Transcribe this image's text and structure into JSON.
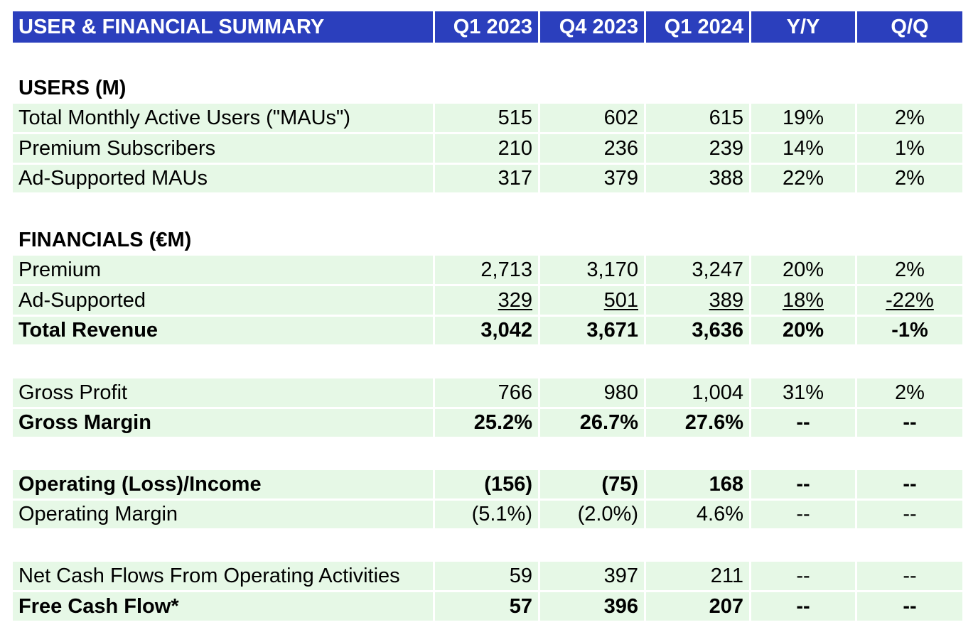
{
  "header": {
    "title": "USER & FINANCIAL SUMMARY",
    "col_q1_2023": "Q1 2023",
    "col_q4_2023": "Q4 2023",
    "col_q1_2024": "Q1 2024",
    "col_yy": "Y/Y",
    "col_qq": "Q/Q"
  },
  "sections": {
    "users": "USERS (M)",
    "financials": "FINANCIALS (€M)"
  },
  "rows": {
    "mau": {
      "label": "Total Monthly Active Users (\"MAUs\")",
      "q1_2023": "515",
      "q4_2023": "602",
      "q1_2024": "615",
      "yy": "19%",
      "qq": "2%"
    },
    "premium_subs": {
      "label": "Premium Subscribers",
      "q1_2023": "210",
      "q4_2023": "236",
      "q1_2024": "239",
      "yy": "14%",
      "qq": "1%"
    },
    "ad_mau": {
      "label": "Ad-Supported MAUs",
      "q1_2023": "317",
      "q4_2023": "379",
      "q1_2024": "388",
      "yy": "22%",
      "qq": "2%"
    },
    "premium": {
      "label": "Premium",
      "q1_2023": "2,713",
      "q4_2023": "3,170",
      "q1_2024": "3,247",
      "yy": "20%",
      "qq": "2%"
    },
    "ad_supported": {
      "label": "Ad-Supported",
      "q1_2023": "329",
      "q4_2023": "501",
      "q1_2024": "389",
      "yy": "18%",
      "qq": "-22%"
    },
    "total_revenue": {
      "label": "Total Revenue",
      "q1_2023": "3,042",
      "q4_2023": "3,671",
      "q1_2024": "3,636",
      "yy": "20%",
      "qq": "-1%"
    },
    "gross_profit": {
      "label": "Gross Profit",
      "q1_2023": "766",
      "q4_2023": "980",
      "q1_2024": "1,004",
      "yy": "31%",
      "qq": "2%"
    },
    "gross_margin": {
      "label": "Gross Margin",
      "q1_2023": "25.2%",
      "q4_2023": "26.7%",
      "q1_2024": "27.6%",
      "yy": "--",
      "qq": "--"
    },
    "op_income": {
      "label": "Operating (Loss)/Income",
      "q1_2023": "(156)",
      "q4_2023": "(75)",
      "q1_2024": "168",
      "yy": "--",
      "qq": "--"
    },
    "op_margin": {
      "label": "Operating Margin",
      "q1_2023": "(5.1%)",
      "q4_2023": "(2.0%)",
      "q1_2024": "4.6%",
      "yy": "--",
      "qq": "--"
    },
    "net_cash": {
      "label": "Net Cash Flows From Operating Activities",
      "q1_2023": "59",
      "q4_2023": "397",
      "q1_2024": "211",
      "yy": "--",
      "qq": "--"
    },
    "fcf": {
      "label": "Free Cash Flow*",
      "q1_2023": "57",
      "q4_2023": "396",
      "q1_2024": "207",
      "yy": "--",
      "qq": "--"
    }
  },
  "colors": {
    "header_bg": "#2b3fbd",
    "row_bg": "#e6f8e6",
    "highlight_bg": "#c4f0c8"
  }
}
